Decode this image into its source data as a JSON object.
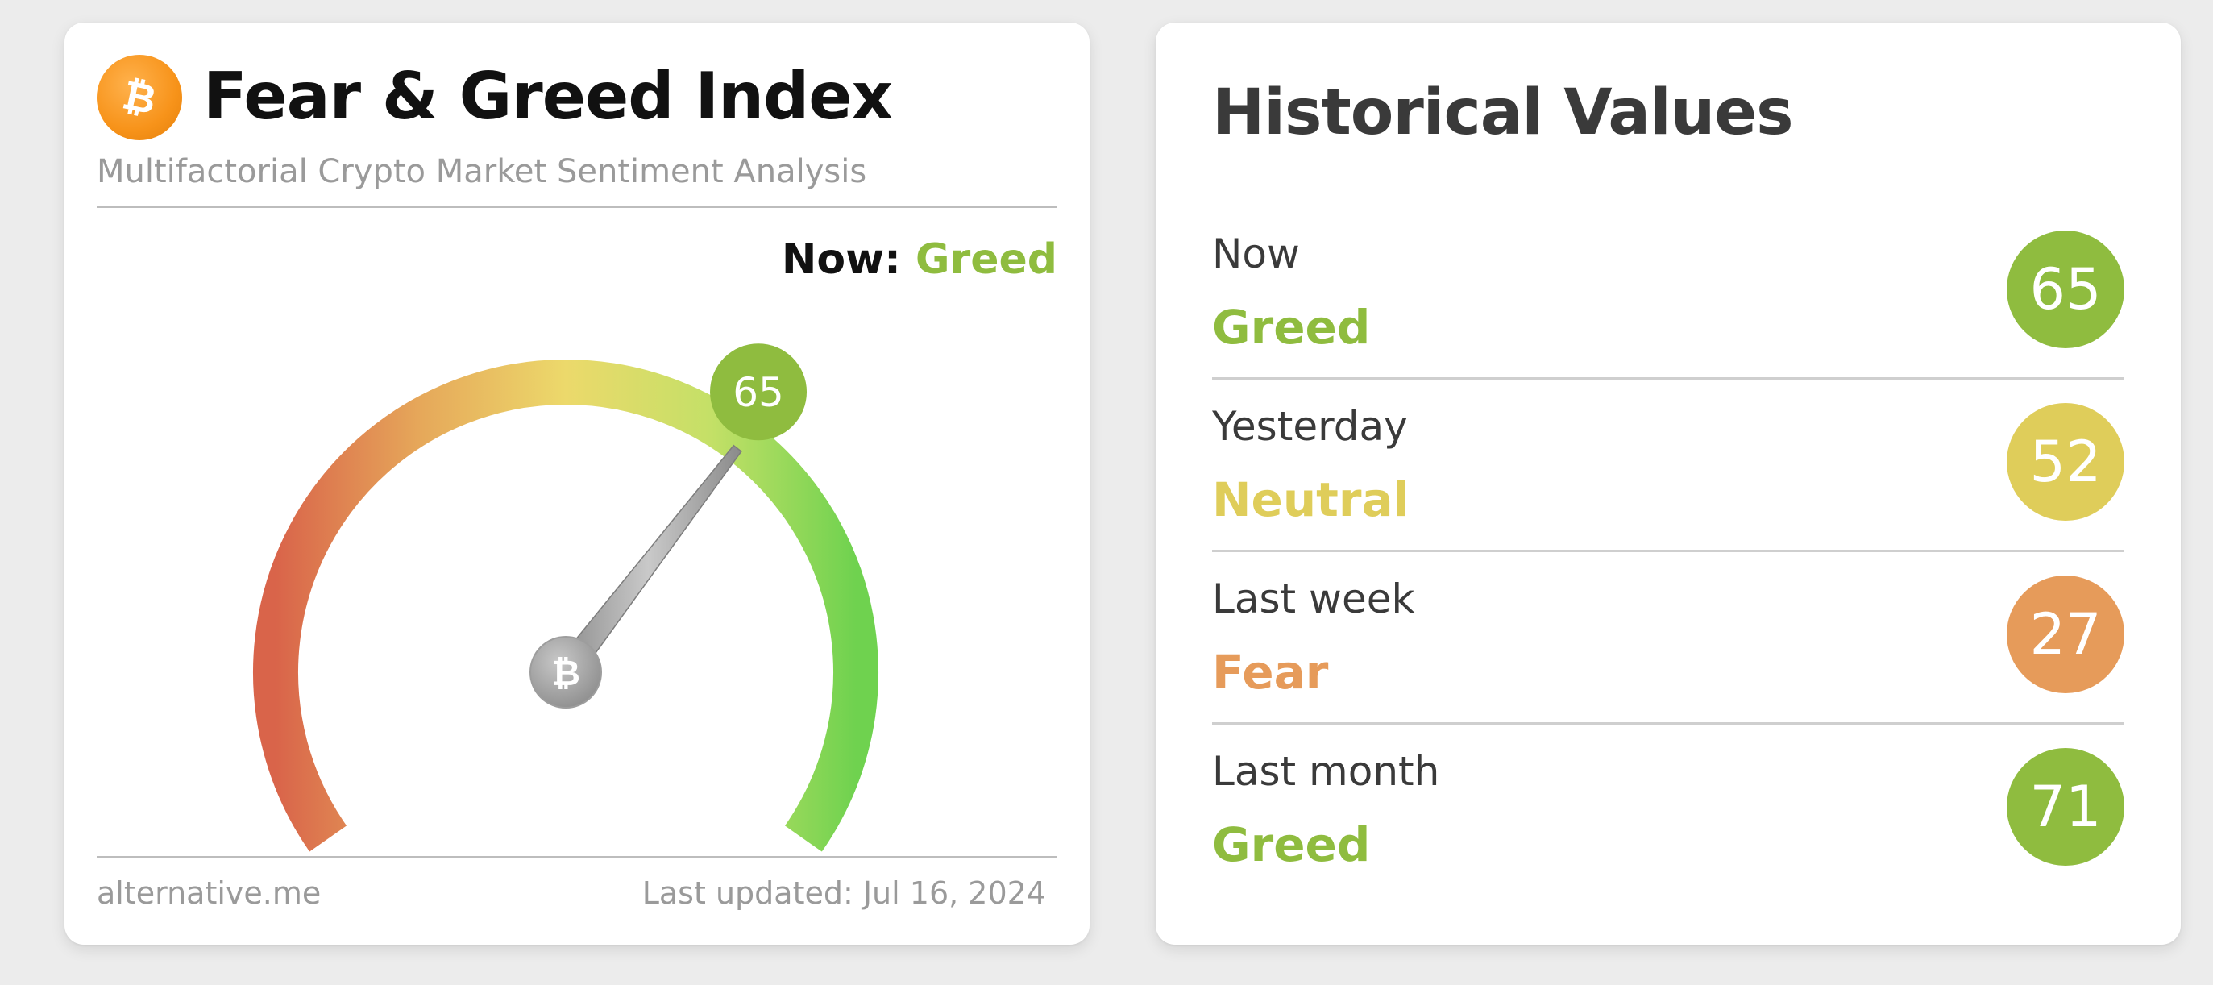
{
  "fear_greed_card": {
    "title": "Fear & Greed Index",
    "subtitle": "Multifactorial Crypto Market Sentiment Analysis",
    "now_label": "Now:",
    "now_classification": "Greed",
    "now_value": 65,
    "value_color": "#8fbc3f",
    "gauge_range": [
      0,
      100
    ],
    "logo_icon": "bitcoin-icon",
    "footer": {
      "brand": "alternative.me",
      "last_updated": "Last updated: Jul 16, 2024"
    }
  },
  "historical_card": {
    "title": "Historical Values",
    "rows": [
      {
        "period": "Now",
        "classification": "Greed",
        "value": "65",
        "color": "#8fbc3f"
      },
      {
        "period": "Yesterday",
        "classification": "Neutral",
        "value": "52",
        "color": "#dfcd5a"
      },
      {
        "period": "Last week",
        "classification": "Fear",
        "value": "27",
        "color": "#e69b5a"
      },
      {
        "period": "Last month",
        "classification": "Greed",
        "value": "71",
        "color": "#8fbc3f"
      }
    ]
  },
  "colors": {
    "greed": "#8fbc3f",
    "neutral": "#dfcd5a",
    "fear": "#e69b5a",
    "bitcoin_orange": "#f7931a"
  }
}
